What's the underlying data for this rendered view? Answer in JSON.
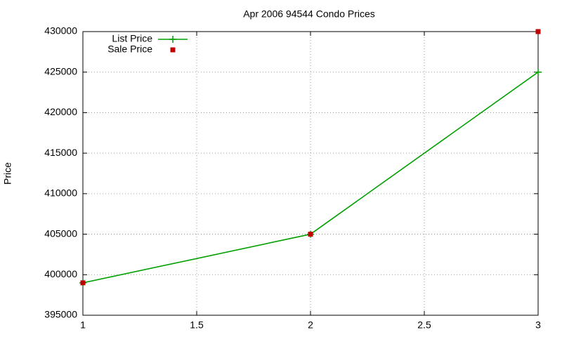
{
  "chart_data": {
    "type": "line",
    "title": "Apr 2006 94544 Condo Prices",
    "y_label": "Price",
    "x": [
      1,
      2,
      3
    ],
    "series": [
      {
        "name": "List Price",
        "color": "#00a000",
        "values": [
          399000,
          405000,
          425000
        ],
        "marker": "plus",
        "line": true
      },
      {
        "name": "Sale Price",
        "color": "#c00000",
        "values": [
          399000,
          405000,
          430000
        ],
        "marker": "square",
        "line": false
      }
    ],
    "xlim": [
      1,
      3
    ],
    "xticks": [
      1,
      1.5,
      2,
      2.5,
      3
    ],
    "ylim": [
      395000,
      430000
    ],
    "yticks": [
      395000,
      400000,
      405000,
      410000,
      415000,
      420000,
      425000,
      430000
    ],
    "grid": true,
    "legend": "top-left"
  }
}
